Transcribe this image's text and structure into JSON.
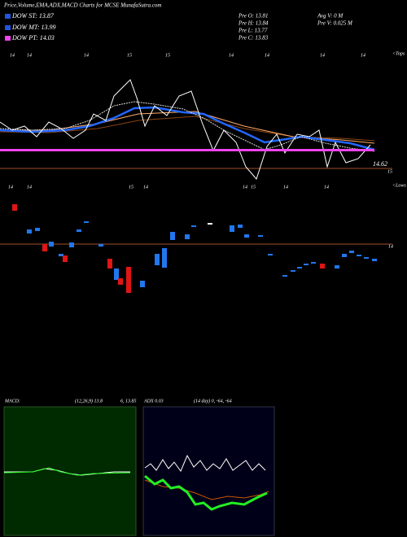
{
  "header": {
    "title": "Price,Volume,EMA,ADX,MACD Charts for MCSE MunafaSutra.com"
  },
  "legend": [
    {
      "label": "DOW ST: 13.87"
    },
    {
      "label": "DOW MT: 13.99"
    },
    {
      "label": "DOW PT: 14.03"
    }
  ],
  "previous": {
    "open": "Pre   O: 13.81",
    "high": "Pre   H: 13.84",
    "low": "Pre   L: 13.77",
    "close": "Pre   C: 13.83",
    "avg_volume": "Avg V: 0  M",
    "volume": "Pre   V: 0.025 M"
  },
  "price_panel": {
    "tops_label": "<Tops",
    "lows_label": "<Lows",
    "top_dates": [
      "14",
      "14",
      "14",
      "15",
      "15",
      "14",
      "14",
      "14",
      "14"
    ],
    "bottom_dates": [
      "14",
      "14",
      "15",
      "14",
      "14",
      "15",
      "14",
      "14"
    ],
    "level_label": "14.62",
    "level_right": "15",
    "volume_level": "14"
  },
  "macd": {
    "label": "MACD:",
    "params": "(12,26,9) 13.8",
    "values": "6, 13.85"
  },
  "adx": {
    "label": "ADX 0.03",
    "params": "(14  day) 0, -64, -64"
  }
}
